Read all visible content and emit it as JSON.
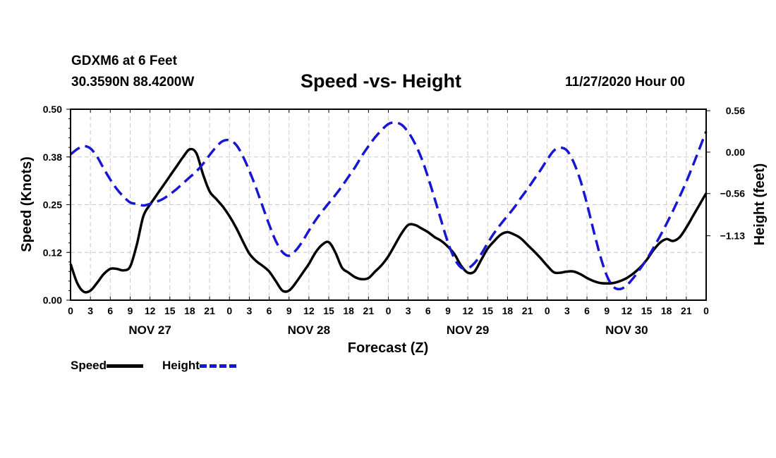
{
  "header": {
    "station": "GDXM6 at 6 Feet",
    "coords": "30.3590N 88.4200W",
    "title": "Speed -vs- Height",
    "datetime": "11/27/2020 Hour 00"
  },
  "legend": {
    "speed_label": "Speed",
    "height_label": "Height"
  },
  "chart_data": {
    "type": "line",
    "title": "Speed -vs- Height",
    "xlabel": "Forecast (Z)",
    "ylabel": "Speed (Knots)",
    "y2label": "Height (feet)",
    "x_range_hours": [
      0,
      96
    ],
    "x_tick_labels": [
      "0",
      "3",
      "6",
      "9",
      "12",
      "15",
      "18",
      "21",
      "0",
      "3",
      "6",
      "9",
      "12",
      "15",
      "18",
      "21",
      "0",
      "3",
      "6",
      "9",
      "12",
      "15",
      "18",
      "21",
      "0",
      "3",
      "6",
      "9",
      "12",
      "15",
      "18",
      "21",
      "0"
    ],
    "x_tick_hours": [
      0,
      3,
      6,
      9,
      12,
      15,
      18,
      21,
      24,
      27,
      30,
      33,
      36,
      39,
      42,
      45,
      48,
      51,
      54,
      57,
      60,
      63,
      66,
      69,
      72,
      75,
      78,
      81,
      84,
      87,
      90,
      93,
      96
    ],
    "day_labels": [
      "NOV 27",
      "NOV 28",
      "NOV 29",
      "NOV 30"
    ],
    "day_label_hours": [
      12,
      36,
      60,
      84
    ],
    "y_left_range": [
      0,
      0.5
    ],
    "y_left_tick_labels": [
      "0.00",
      "0.12",
      "0.25",
      "0.38",
      "0.50"
    ],
    "y_left_tick_values": [
      0,
      0.125,
      0.25,
      0.375,
      0.5
    ],
    "y_right_range": [
      -2.0,
      0.58
    ],
    "y_right_tick_labels": [
      "0.56",
      "0.00",
      "−0.56",
      "−1.13"
    ],
    "y_right_tick_values": [
      0.56,
      0.0,
      -0.56,
      -1.13
    ],
    "grid": true,
    "legend_position": "bottom-left",
    "series": [
      {
        "name": "Speed",
        "axis": "left",
        "color": "#000000",
        "dash": "solid",
        "x": [
          0,
          1,
          2,
          3,
          4,
          5,
          6,
          7,
          8,
          9,
          10,
          11,
          12,
          13,
          14,
          15,
          16,
          17,
          18,
          19,
          20,
          21,
          22,
          23,
          24,
          25,
          26,
          27,
          28,
          29,
          30,
          31,
          32,
          33,
          34,
          35,
          36,
          37,
          38,
          39,
          40,
          41,
          42,
          43,
          44,
          45,
          46,
          47,
          48,
          49,
          50,
          51,
          52,
          53,
          54,
          55,
          56,
          57,
          58,
          59,
          60,
          61,
          62,
          63,
          64,
          65,
          66,
          67,
          68,
          69,
          70,
          71,
          72,
          73,
          74,
          75,
          76,
          77,
          78,
          79,
          80,
          81,
          82,
          83,
          84,
          85,
          86,
          87,
          88,
          89,
          90,
          91,
          92,
          93,
          94,
          95,
          96
        ],
        "values": [
          0.095,
          0.045,
          0.022,
          0.025,
          0.045,
          0.068,
          0.082,
          0.082,
          0.078,
          0.088,
          0.145,
          0.22,
          0.25,
          0.275,
          0.3,
          0.325,
          0.35,
          0.375,
          0.395,
          0.385,
          0.33,
          0.285,
          0.265,
          0.245,
          0.22,
          0.19,
          0.155,
          0.122,
          0.103,
          0.09,
          0.075,
          0.05,
          0.025,
          0.025,
          0.045,
          0.07,
          0.095,
          0.125,
          0.145,
          0.152,
          0.125,
          0.085,
          0.072,
          0.06,
          0.055,
          0.058,
          0.075,
          0.092,
          0.115,
          0.145,
          0.175,
          0.197,
          0.197,
          0.188,
          0.178,
          0.165,
          0.155,
          0.14,
          0.12,
          0.09,
          0.072,
          0.075,
          0.105,
          0.135,
          0.155,
          0.172,
          0.178,
          0.172,
          0.162,
          0.145,
          0.128,
          0.11,
          0.09,
          0.073,
          0.072,
          0.075,
          0.075,
          0.068,
          0.058,
          0.05,
          0.045,
          0.044,
          0.045,
          0.05,
          0.058,
          0.07,
          0.085,
          0.105,
          0.13,
          0.15,
          0.16,
          0.155,
          0.165,
          0.19,
          0.22,
          0.25,
          0.28
        ]
      },
      {
        "name": "Height",
        "axis": "right",
        "color": "#1616d4",
        "dash": "dashed",
        "x": [
          0,
          1,
          2,
          3,
          4,
          5,
          6,
          7,
          8,
          9,
          10,
          11,
          12,
          13,
          14,
          15,
          16,
          17,
          18,
          19,
          20,
          21,
          22,
          23,
          24,
          25,
          26,
          27,
          28,
          29,
          30,
          31,
          32,
          33,
          34,
          35,
          36,
          37,
          38,
          39,
          40,
          41,
          42,
          43,
          44,
          45,
          46,
          47,
          48,
          49,
          50,
          51,
          52,
          53,
          54,
          55,
          56,
          57,
          58,
          59,
          60,
          61,
          62,
          63,
          64,
          65,
          66,
          67,
          68,
          69,
          70,
          71,
          72,
          73,
          74,
          75,
          76,
          77,
          78,
          79,
          80,
          81,
          82,
          83,
          84,
          85,
          86,
          87,
          88,
          89,
          90,
          91,
          92,
          93,
          94,
          95,
          96
        ],
        "values": [
          -0.03,
          0.04,
          0.08,
          0.05,
          -0.06,
          -0.22,
          -0.37,
          -0.5,
          -0.6,
          -0.68,
          -0.7,
          -0.72,
          -0.7,
          -0.67,
          -0.63,
          -0.57,
          -0.5,
          -0.42,
          -0.34,
          -0.26,
          -0.16,
          -0.04,
          0.07,
          0.15,
          0.16,
          0.1,
          -0.05,
          -0.25,
          -0.48,
          -0.73,
          -0.98,
          -1.2,
          -1.35,
          -1.4,
          -1.33,
          -1.21,
          -1.06,
          -0.92,
          -0.8,
          -0.69,
          -0.58,
          -0.46,
          -0.33,
          -0.2,
          -0.05,
          0.08,
          0.2,
          0.3,
          0.38,
          0.4,
          0.37,
          0.27,
          0.12,
          -0.08,
          -0.34,
          -0.63,
          -0.93,
          -1.22,
          -1.44,
          -1.56,
          -1.57,
          -1.5,
          -1.38,
          -1.23,
          -1.09,
          -0.97,
          -0.86,
          -0.75,
          -0.62,
          -0.5,
          -0.37,
          -0.24,
          -0.1,
          0.02,
          0.06,
          0.02,
          -0.14,
          -0.38,
          -0.7,
          -1.06,
          -1.4,
          -1.67,
          -1.82,
          -1.85,
          -1.8,
          -1.7,
          -1.58,
          -1.45,
          -1.3,
          -1.14,
          -0.97,
          -0.79,
          -0.6,
          -0.4,
          -0.18,
          0.05,
          0.28
        ]
      }
    ]
  }
}
